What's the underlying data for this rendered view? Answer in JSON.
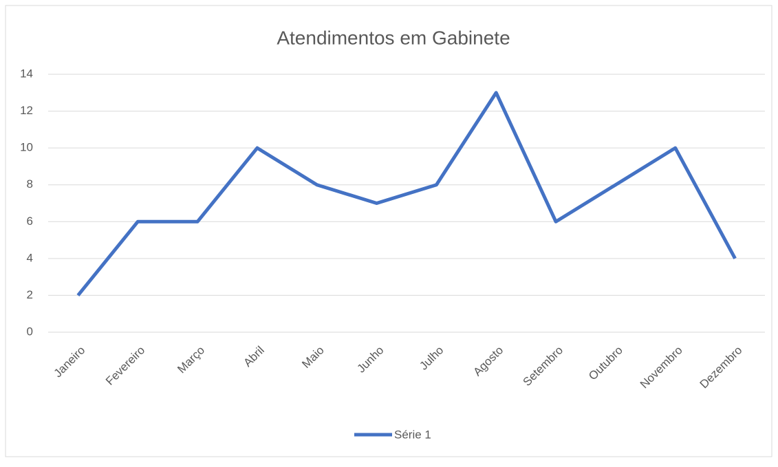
{
  "chart_data": {
    "type": "line",
    "title": "Atendimentos em Gabinete",
    "categories": [
      "Janeiro",
      "Fevereiro",
      "Março",
      "Abril",
      "Maio",
      "Junho",
      "Julho",
      "Agosto",
      "Setembro",
      "Outubro",
      "Novembro",
      "Dezembro"
    ],
    "series": [
      {
        "name": "Série 1",
        "color": "#4472c4",
        "values": [
          2,
          6,
          6,
          10,
          8,
          7,
          8,
          13,
          6,
          8,
          10,
          4
        ]
      }
    ],
    "ylim": [
      0,
      14
    ],
    "yticks": [
      0,
      2,
      4,
      6,
      8,
      10,
      12,
      14
    ],
    "grid": true,
    "legend": "bottom"
  }
}
